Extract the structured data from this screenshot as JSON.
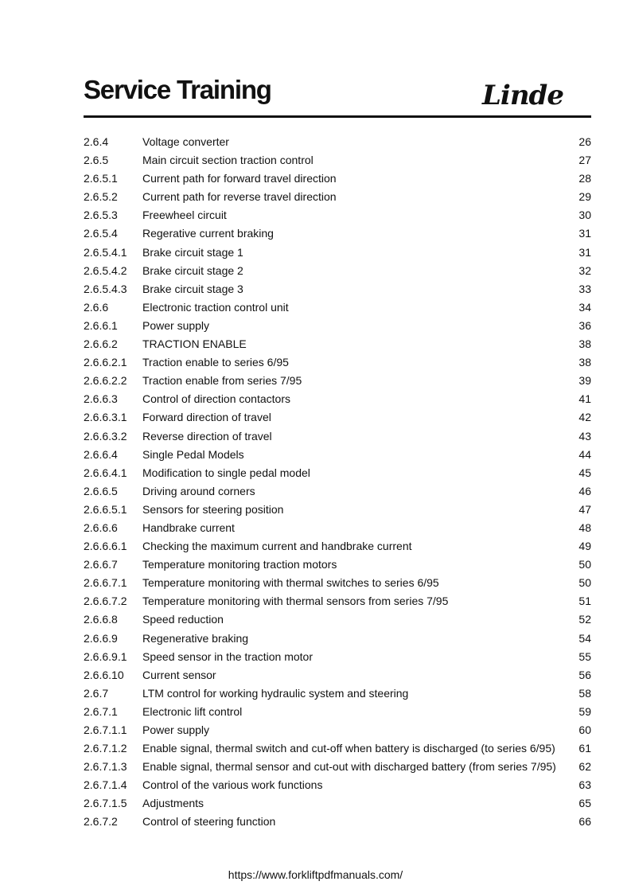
{
  "header": {
    "title": "Service Training",
    "logo_text": "Linde"
  },
  "toc": [
    {
      "num": "2.6.4",
      "title": "Voltage converter",
      "page": "26"
    },
    {
      "num": "2.6.5",
      "title": "Main circuit section traction control",
      "page": "27"
    },
    {
      "num": "2.6.5.1",
      "title": "Current path for forward travel direction",
      "page": "28"
    },
    {
      "num": "2.6.5.2",
      "title": "Current path for reverse travel direction",
      "page": "29"
    },
    {
      "num": "2.6.5.3",
      "title": "Freewheel circuit",
      "page": "30"
    },
    {
      "num": "2.6.5.4",
      "title": "Regerative current braking",
      "page": "31"
    },
    {
      "num": "2.6.5.4.1",
      "title": "Brake circuit stage 1",
      "page": "31"
    },
    {
      "num": "2.6.5.4.2",
      "title": "Brake circuit stage 2",
      "page": "32"
    },
    {
      "num": "2.6.5.4.3",
      "title": "Brake circuit stage 3",
      "page": "33"
    },
    {
      "num": "2.6.6",
      "title": "Electronic traction control unit",
      "page": "34"
    },
    {
      "num": "2.6.6.1",
      "title": "Power supply",
      "page": "36"
    },
    {
      "num": "2.6.6.2",
      "title": "TRACTION  ENABLE",
      "page": "38"
    },
    {
      "num": "2.6.6.2.1",
      "title": "Traction enable to series 6/95",
      "page": "38"
    },
    {
      "num": "2.6.6.2.2",
      "title": "Traction enable from series 7/95",
      "page": "39"
    },
    {
      "num": "2.6.6.3",
      "title": "Control of direction contactors",
      "page": "41"
    },
    {
      "num": "2.6.6.3.1",
      "title": "Forward direction of travel",
      "page": "42"
    },
    {
      "num": "2.6.6.3.2",
      "title": "Reverse direction of travel",
      "page": "43"
    },
    {
      "num": "2.6.6.4",
      "title": "Single Pedal Models",
      "page": "44"
    },
    {
      "num": "2.6.6.4.1",
      "title": "Modification to single pedal model",
      "page": "45"
    },
    {
      "num": "2.6.6.5",
      "title": "Driving around corners",
      "page": "46"
    },
    {
      "num": "2.6.6.5.1",
      "title": "Sensors for steering position",
      "page": "47"
    },
    {
      "num": "2.6.6.6",
      "title": "Handbrake current",
      "page": "48"
    },
    {
      "num": "2.6.6.6.1",
      "title": "Checking the maximum current and handbrake current",
      "page": "49"
    },
    {
      "num": "2.6.6.7",
      "title": "Temperature monitoring traction motors",
      "page": "50"
    },
    {
      "num": "2.6.6.7.1",
      "title": "Temperature monitoring with thermal switches to series 6/95",
      "page": "50"
    },
    {
      "num": "2.6.6.7.2",
      "title": "Temperature monitoring with thermal sensors from series 7/95",
      "page": "51"
    },
    {
      "num": "2.6.6.8",
      "title": "Speed reduction",
      "page": "52"
    },
    {
      "num": "2.6.6.9",
      "title": "Regenerative braking",
      "page": "54"
    },
    {
      "num": "2.6.6.9.1",
      "title": "Speed sensor in the traction motor",
      "page": "55"
    },
    {
      "num": "2.6.6.10",
      "title": "Current sensor",
      "page": "56"
    },
    {
      "num": "2.6.7",
      "title": "LTM control for working hydraulic system and steering",
      "page": "58"
    },
    {
      "num": "2.6.7.1",
      "title": "Electronic lift control",
      "page": "59"
    },
    {
      "num": "2.6.7.1.1",
      "title": "Power supply",
      "page": "60"
    },
    {
      "num": "2.6.7.1.2",
      "title": "Enable signal, thermal switch and cut-off when battery is discharged (to series 6/95)",
      "page": "61"
    },
    {
      "num": "2.6.7.1.3",
      "title": "Enable signal, thermal sensor and cut-out with discharged battery (from series 7/95)",
      "page": "62"
    },
    {
      "num": "2.6.7.1.4",
      "title": "Control of the various work functions",
      "page": "63"
    },
    {
      "num": "2.6.7.1.5",
      "title": "Adjustments",
      "page": "65"
    },
    {
      "num": "2.6.7.2",
      "title": "Control of steering function",
      "page": "66"
    }
  ],
  "footer": {
    "url": "https://www.forkliftpdfmanuals.com/"
  }
}
